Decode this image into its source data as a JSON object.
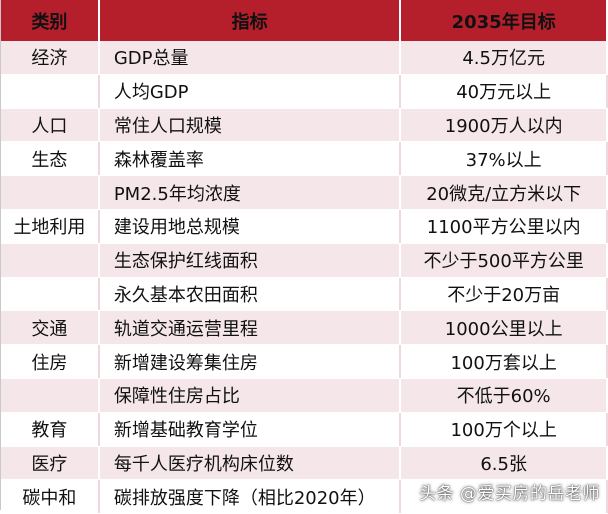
{
  "headers": {
    "category": "类别",
    "indicator": "指标",
    "target": "2035年目标"
  },
  "rows": [
    {
      "category": "经济",
      "indicator": "GDP总量",
      "target": "4.5万亿元"
    },
    {
      "category": "",
      "indicator": "人均GDP",
      "target": "40万元以上"
    },
    {
      "category": "人口",
      "indicator": "常住人口规模",
      "target": "1900万人以内"
    },
    {
      "category": "生态",
      "indicator": "森林覆盖率",
      "target": "37%以上"
    },
    {
      "category": "",
      "indicator": "PM2.5年均浓度",
      "target": "20微克/立方米以下"
    },
    {
      "category": "土地利用",
      "indicator": "建设用地总规模",
      "target": "1100平方公里以内"
    },
    {
      "category": "",
      "indicator": "生态保护红线面积",
      "target": "不少于500平方公里"
    },
    {
      "category": "",
      "indicator": "永久基本农田面积",
      "target": "不少于20万亩"
    },
    {
      "category": "交通",
      "indicator": "轨道交通运营里程",
      "target": "1000公里以上"
    },
    {
      "category": "住房",
      "indicator": "新增建设筹集住房",
      "target": "100万套以上"
    },
    {
      "category": "",
      "indicator": "保障性住房占比",
      "target": "不低于60%"
    },
    {
      "category": "教育",
      "indicator": "新增基础教育学位",
      "target": "100万个以上"
    },
    {
      "category": "医疗",
      "indicator": "每千人医疗机构床位数",
      "target": "6.5张"
    },
    {
      "category": "碳中和",
      "indicator": "碳排放强度下降（相比2020年）",
      "target": ""
    }
  ],
  "watermark": "头条 @爱买房的岳老师"
}
